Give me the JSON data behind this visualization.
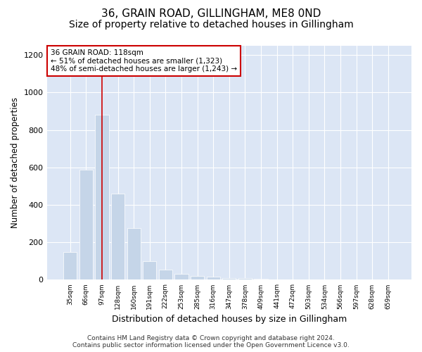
{
  "title": "36, GRAIN ROAD, GILLINGHAM, ME8 0ND",
  "subtitle": "Size of property relative to detached houses in Gillingham",
  "xlabel": "Distribution of detached houses by size in Gillingham",
  "ylabel": "Number of detached properties",
  "categories": [
    "35sqm",
    "66sqm",
    "97sqm",
    "128sqm",
    "160sqm",
    "191sqm",
    "222sqm",
    "253sqm",
    "285sqm",
    "316sqm",
    "347sqm",
    "378sqm",
    "409sqm",
    "441sqm",
    "472sqm",
    "503sqm",
    "534sqm",
    "566sqm",
    "597sqm",
    "628sqm",
    "659sqm"
  ],
  "values": [
    150,
    590,
    880,
    460,
    275,
    100,
    55,
    30,
    20,
    15,
    10,
    8,
    5,
    2,
    1,
    1,
    0,
    0,
    0,
    0,
    0
  ],
  "bar_color": "#c5d5e8",
  "vline_index": 2,
  "vline_color": "#cc0000",
  "annotation_text": "36 GRAIN ROAD: 118sqm\n← 51% of detached houses are smaller (1,323)\n48% of semi-detached houses are larger (1,243) →",
  "annotation_box_color": "#ffffff",
  "annotation_box_edge": "#cc0000",
  "ylim": [
    0,
    1250
  ],
  "yticks": [
    0,
    200,
    400,
    600,
    800,
    1000,
    1200
  ],
  "background_color": "#dce6f5",
  "footer": "Contains HM Land Registry data © Crown copyright and database right 2024.\nContains public sector information licensed under the Open Government Licence v3.0.",
  "title_fontsize": 11,
  "subtitle_fontsize": 10,
  "xlabel_fontsize": 9,
  "ylabel_fontsize": 8.5,
  "footer_fontsize": 6.5
}
